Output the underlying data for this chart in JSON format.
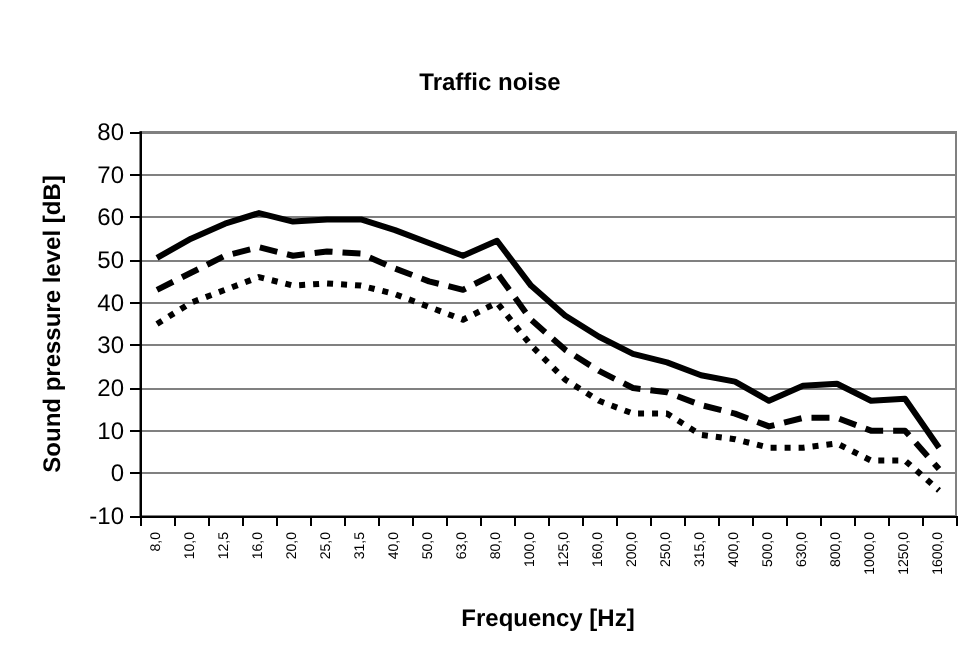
{
  "chart_data": {
    "type": "line",
    "title": "Traffic noise",
    "xlabel": "Frequency [Hz]",
    "ylabel": "Sound pressure level [dB]",
    "categories": [
      "8,0",
      "10,0",
      "12,5",
      "16,0",
      "20,0",
      "25,0",
      "31,5",
      "40,0",
      "50,0",
      "63,0",
      "80,0",
      "100,0",
      "125,0",
      "160,0",
      "200,0",
      "250,0",
      "315,0",
      "400,0",
      "500,0",
      "630,0",
      "800,0",
      "1000,0",
      "1250,0",
      "1600,0"
    ],
    "series": [
      {
        "color": "#000000",
        "line_style": "solid",
        "values": [
          50.5,
          55,
          58.5,
          61,
          59,
          59.5,
          59.5,
          57,
          54,
          51,
          54.5,
          44,
          37,
          32,
          28,
          26,
          23,
          21.5,
          17,
          20.5,
          21,
          17,
          17.5,
          6
        ]
      },
      {
        "color": "#000000",
        "line_style": "dashed",
        "values": [
          43,
          47,
          51,
          53,
          51,
          52,
          51.5,
          48,
          45,
          43,
          47,
          36,
          29,
          24,
          20,
          19,
          16,
          14,
          11,
          13,
          13,
          10,
          10,
          1
        ]
      },
      {
        "color": "#000000",
        "line_style": "dotted",
        "values": [
          35,
          40,
          43,
          46,
          44,
          44.5,
          44,
          42,
          39,
          36,
          40,
          30,
          22,
          17,
          14,
          14,
          9,
          8,
          6,
          6,
          7,
          3,
          3,
          -4
        ]
      }
    ],
    "ylim": [
      -10,
      80
    ],
    "yticks": [
      -10,
      0,
      10,
      20,
      30,
      40,
      50,
      60,
      70,
      80
    ],
    "grid": "y",
    "marker": "none"
  }
}
